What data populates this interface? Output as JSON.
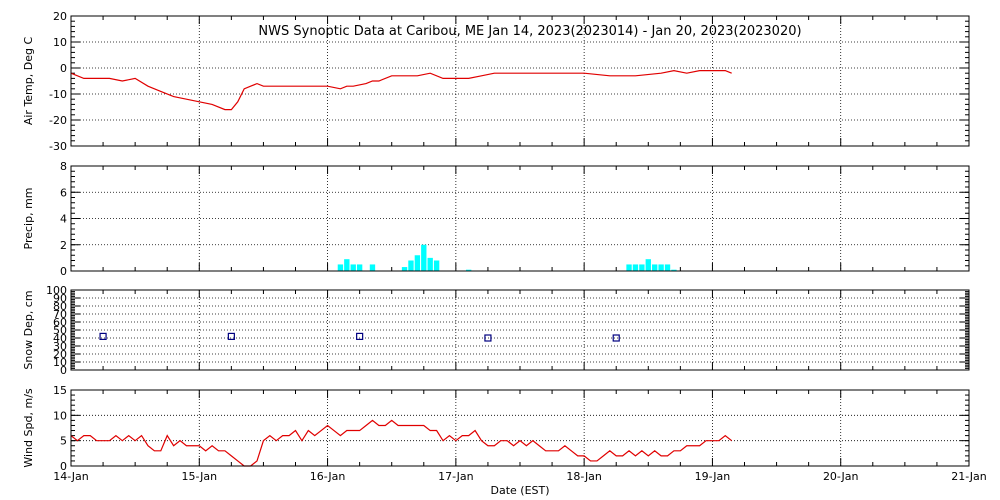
{
  "title": "NWS Synoptic Data at Caribou, ME   Jan 14, 2023(2023014) - Jan 20, 2023(2023020)",
  "x_axis": {
    "label": "Date (EST)",
    "ticks": [
      "14-Jan",
      "15-Jan",
      "16-Jan",
      "17-Jan",
      "18-Jan",
      "19-Jan",
      "20-Jan",
      "21-Jan"
    ],
    "range_days": [
      0,
      7
    ]
  },
  "colors": {
    "temp": "#e00000",
    "precip": "#00ffff",
    "snow": "#000080",
    "wind": "#e00000",
    "grid": "#000000"
  },
  "chart_data": [
    {
      "type": "line",
      "ylabel": "Air Temp, Deg C",
      "ylim": [
        -30,
        20
      ],
      "yticks": [
        -30,
        -20,
        -10,
        0,
        10,
        20
      ],
      "grid": true,
      "x_unit": "days since 14-Jan 00:00",
      "x": [
        0.0,
        0.1,
        0.2,
        0.3,
        0.4,
        0.5,
        0.6,
        0.7,
        0.8,
        0.9,
        1.0,
        1.1,
        1.2,
        1.25,
        1.3,
        1.35,
        1.4,
        1.45,
        1.5,
        1.55,
        1.6,
        1.7,
        1.8,
        1.9,
        2.0,
        2.1,
        2.15,
        2.2,
        2.3,
        2.35,
        2.4,
        2.5,
        2.55,
        2.6,
        2.7,
        2.8,
        2.9,
        3.0,
        3.1,
        3.2,
        3.3,
        3.4,
        3.5,
        3.6,
        3.8,
        4.0,
        4.2,
        4.4,
        4.6,
        4.7,
        4.8,
        4.9,
        5.0,
        5.1,
        5.15
      ],
      "y": [
        -2,
        -4,
        -4,
        -4,
        -5,
        -4,
        -7,
        -9,
        -11,
        -12,
        -13,
        -14,
        -16,
        -16,
        -13,
        -8,
        -7,
        -6,
        -7,
        -7,
        -7,
        -7,
        -7,
        -7,
        -7,
        -8,
        -7,
        -7,
        -6,
        -5,
        -5,
        -3,
        -3,
        -3,
        -3,
        -2,
        -4,
        -4,
        -4,
        -3,
        -2,
        -2,
        -2,
        -2,
        -2,
        -2,
        -3,
        -3,
        -2,
        -1,
        -2,
        -1,
        -1,
        -1,
        -2
      ]
    },
    {
      "type": "bar",
      "ylabel": "Precip, mm",
      "ylim": [
        0,
        8
      ],
      "yticks": [
        0,
        2,
        4,
        6,
        8
      ],
      "grid": true,
      "x_unit": "days since 14-Jan 00:00",
      "bar_width_days": 0.0417,
      "x": [
        2.1,
        2.15,
        2.2,
        2.25,
        2.35,
        2.6,
        2.65,
        2.7,
        2.75,
        2.8,
        2.85,
        3.1,
        4.35,
        4.4,
        4.45,
        4.5,
        4.55,
        4.6,
        4.65,
        4.7
      ],
      "values": [
        0.5,
        0.9,
        0.5,
        0.5,
        0.5,
        0.3,
        0.8,
        1.2,
        2.0,
        1.0,
        0.8,
        0.1,
        0.5,
        0.5,
        0.5,
        0.9,
        0.5,
        0.5,
        0.5,
        0.1
      ]
    },
    {
      "type": "scatter",
      "ylabel": "Snow Dep, cm",
      "ylim": [
        0,
        100
      ],
      "yticks": [
        0,
        10,
        20,
        30,
        40,
        50,
        60,
        70,
        80,
        90,
        100
      ],
      "grid": true,
      "x_unit": "days since 14-Jan 00:00",
      "x": [
        0.25,
        1.25,
        2.25,
        3.25,
        4.25
      ],
      "y": [
        42,
        42,
        42,
        40,
        40
      ]
    },
    {
      "type": "line",
      "ylabel": "Wind Spd, m/s",
      "ylim": [
        0,
        15
      ],
      "yticks": [
        0,
        5,
        10,
        15
      ],
      "grid": true,
      "x_unit": "days since 14-Jan 00:00",
      "x": [
        0.0,
        0.05,
        0.1,
        0.15,
        0.2,
        0.25,
        0.3,
        0.35,
        0.4,
        0.45,
        0.5,
        0.55,
        0.6,
        0.65,
        0.7,
        0.75,
        0.8,
        0.85,
        0.9,
        0.95,
        1.0,
        1.05,
        1.1,
        1.15,
        1.2,
        1.25,
        1.3,
        1.35,
        1.4,
        1.45,
        1.5,
        1.55,
        1.6,
        1.65,
        1.7,
        1.75,
        1.8,
        1.85,
        1.9,
        1.95,
        2.0,
        2.05,
        2.1,
        2.15,
        2.2,
        2.25,
        2.3,
        2.35,
        2.4,
        2.45,
        2.5,
        2.55,
        2.6,
        2.65,
        2.7,
        2.75,
        2.8,
        2.85,
        2.9,
        2.95,
        3.0,
        3.05,
        3.1,
        3.15,
        3.2,
        3.25,
        3.3,
        3.35,
        3.4,
        3.45,
        3.5,
        3.55,
        3.6,
        3.65,
        3.7,
        3.75,
        3.8,
        3.85,
        3.9,
        3.95,
        4.0,
        4.05,
        4.1,
        4.15,
        4.2,
        4.25,
        4.3,
        4.35,
        4.4,
        4.45,
        4.5,
        4.55,
        4.6,
        4.65,
        4.7,
        4.75,
        4.8,
        4.85,
        4.9,
        4.95,
        5.0,
        5.05,
        5.1,
        5.15
      ],
      "y": [
        6,
        5,
        6,
        6,
        5,
        5,
        5,
        6,
        5,
        6,
        5,
        6,
        4,
        3,
        3,
        6,
        4,
        5,
        4,
        4,
        4,
        3,
        4,
        3,
        3,
        2,
        1,
        0,
        0,
        1,
        5,
        6,
        5,
        6,
        6,
        7,
        5,
        7,
        6,
        7,
        8,
        7,
        6,
        7,
        7,
        7,
        8,
        9,
        8,
        8,
        9,
        8,
        8,
        8,
        8,
        8,
        7,
        7,
        5,
        6,
        5,
        6,
        6,
        7,
        5,
        4,
        4,
        5,
        5,
        4,
        5,
        4,
        5,
        4,
        3,
        3,
        3,
        4,
        3,
        2,
        2,
        1,
        1,
        2,
        3,
        2,
        2,
        3,
        2,
        3,
        2,
        3,
        2,
        2,
        3,
        3,
        4,
        4,
        4,
        5,
        5,
        5,
        6,
        5
      ]
    }
  ]
}
